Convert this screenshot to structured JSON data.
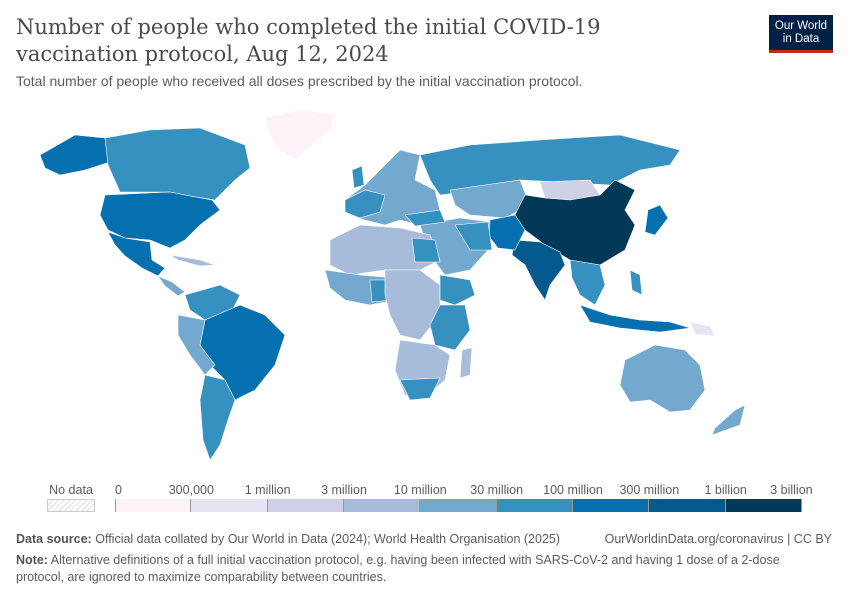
{
  "header": {
    "title": "Number of people who completed the initial COVID-19 vaccination protocol, Aug 12, 2024",
    "subtitle": "Total number of people who received all doses prescribed by the initial vaccination protocol.",
    "logo": {
      "line1": "Our World",
      "line2": "in Data"
    }
  },
  "legend": {
    "no_data_label": "No data",
    "thresholds": [
      "0",
      "300,000",
      "1 million",
      "3 million",
      "10 million",
      "30 million",
      "100 million",
      "300 million",
      "1 billion",
      "3 billion"
    ],
    "colors": [
      "#fdf2f8",
      "#e7e3f0",
      "#cfd0e6",
      "#a7bcdb",
      "#74a9cf",
      "#3690c0",
      "#0570b0",
      "#045a8d",
      "#023858"
    ],
    "no_data_color": "#eeeeee"
  },
  "footer": {
    "source_label": "Data source:",
    "source_text": "Official data collated by Our World in Data (2024); World Health Organisation (2025)",
    "url": "OurWorldinData.org/coronavirus | CC BY",
    "note_label": "Note:",
    "note_text": "Alternative definitions of a full initial vaccination protocol, e.g. having been infected with SARS-CoV-2 and having 1 dose of a 2-dose protocol, are ignored to maximize comparability between countries."
  }
}
